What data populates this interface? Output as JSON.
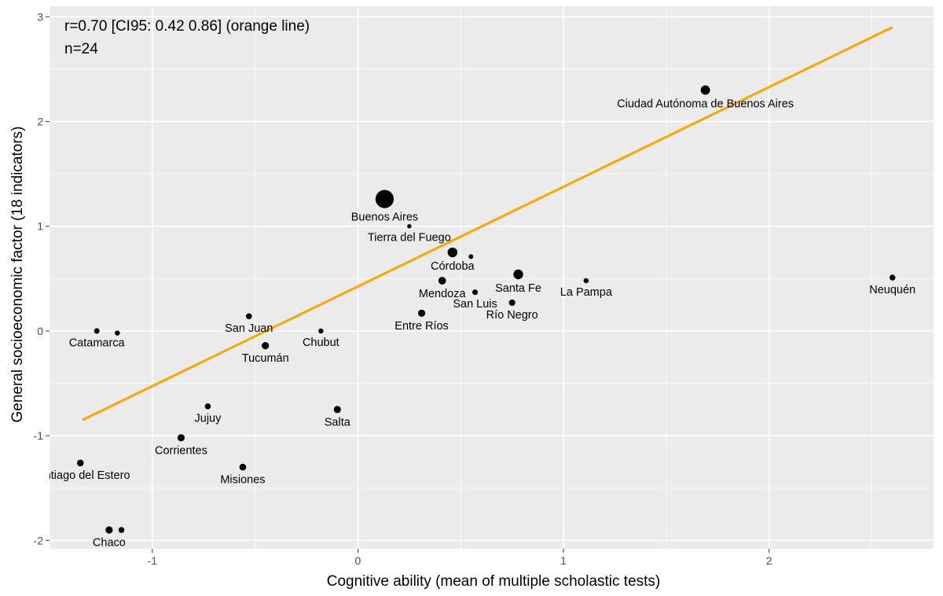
{
  "chart_data": {
    "type": "scatter",
    "xlabel": "Cognitive ability (mean of multiple scholastic tests)",
    "ylabel": "General socioeconomic factor (18 indicators)",
    "xlim": [
      -1.5,
      2.8
    ],
    "ylim": [
      -2.08,
      3.1
    ],
    "x_ticks": [
      -1,
      0,
      1,
      2
    ],
    "y_ticks": [
      -2,
      -1,
      0,
      1,
      2,
      3
    ],
    "grid": true,
    "annotations": [
      "r=0.70 [CI95: 0.42 0.86] (orange line)",
      "n=24"
    ],
    "fit_line": {
      "color": "#FFA500",
      "x": [
        -1.34,
        2.6
      ],
      "y": [
        -0.85,
        2.9
      ]
    },
    "points": [
      {
        "label": "Ciudad Autónoma de Buenos Aires",
        "x": 1.69,
        "y": 2.3,
        "size": 2.2
      },
      {
        "label": "Buenos Aires",
        "x": 0.13,
        "y": 1.26,
        "size": 4.3
      },
      {
        "label": "Tierra del Fuego",
        "x": 0.25,
        "y": 1.0,
        "size": 1
      },
      {
        "label": "Córdoba",
        "x": 0.46,
        "y": 0.75,
        "size": 2.3
      },
      {
        "label": "",
        "x": 0.55,
        "y": 0.71,
        "size": 1.1
      },
      {
        "label": "Santa Fe",
        "x": 0.78,
        "y": 0.54,
        "size": 2.3
      },
      {
        "label": "Mendoza",
        "x": 0.41,
        "y": 0.48,
        "size": 1.8
      },
      {
        "label": "La Pampa",
        "x": 1.11,
        "y": 0.48,
        "size": 1.2
      },
      {
        "label": "Neuquén",
        "x": 2.6,
        "y": 0.51,
        "size": 1.4
      },
      {
        "label": "San Luis",
        "x": 0.57,
        "y": 0.37,
        "size": 1.3
      },
      {
        "label": "Río Negro",
        "x": 0.75,
        "y": 0.27,
        "size": 1.5
      },
      {
        "label": "Entre Ríos",
        "x": 0.31,
        "y": 0.17,
        "size": 1.7
      },
      {
        "label": "San Juan",
        "x": -0.53,
        "y": 0.14,
        "size": 1.4
      },
      {
        "label": "Chubut",
        "x": -0.18,
        "y": 0.0,
        "size": 1.2
      },
      {
        "label": "Catamarca",
        "x": -1.27,
        "y": 0.0,
        "size": 1.3
      },
      {
        "label": "",
        "x": -1.17,
        "y": -0.02,
        "size": 1.2
      },
      {
        "label": "Tucumán",
        "x": -0.45,
        "y": -0.14,
        "size": 1.7
      },
      {
        "label": "Jujuy",
        "x": -0.73,
        "y": -0.72,
        "size": 1.4
      },
      {
        "label": "Salta",
        "x": -0.1,
        "y": -0.75,
        "size": 1.7
      },
      {
        "label": "Corrientes",
        "x": -0.86,
        "y": -1.02,
        "size": 1.7
      },
      {
        "label": "Santiago del Estero",
        "x": -1.35,
        "y": -1.26,
        "size": 1.6
      },
      {
        "label": "Misiones",
        "x": -0.56,
        "y": -1.3,
        "size": 1.6
      },
      {
        "label": "Chaco",
        "x": -1.21,
        "y": -1.9,
        "size": 1.7
      },
      {
        "label": "",
        "x": -1.15,
        "y": -1.9,
        "size": 1.4
      }
    ]
  }
}
